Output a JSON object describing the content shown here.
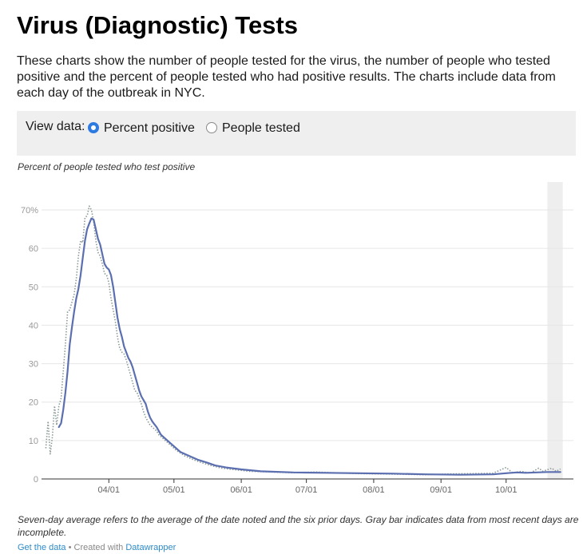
{
  "header": {
    "title": "Virus (Diagnostic) Tests",
    "intro": "These charts show the number of people tested for the virus, the number of people who tested positive and the percent of people tested who had positive results. The charts include data from each day of the outbreak in NYC."
  },
  "controls": {
    "label": "View data:",
    "options": [
      {
        "label": "Percent positive",
        "selected": true
      },
      {
        "label": "People tested",
        "selected": false
      }
    ]
  },
  "chart_subtitle": "Percent of people tested who test positive",
  "note": "Seven-day average refers to the average of the date noted and the six prior days. Gray bar indicates data from most recent days are incomplete.",
  "footer": {
    "get_data": "Get the data",
    "created_with": " • Created with ",
    "tool": "Datawrapper"
  },
  "colors": {
    "average_line": "#5b6fb0",
    "daily_line": "#8a9a96",
    "incomplete_bar": "#eeeeee",
    "accent": "#2d7ae0"
  },
  "chart_data": {
    "type": "line",
    "title": "Percent of people tested who test positive",
    "xlabel": "",
    "ylabel": "",
    "x_ticks": [
      "04/01",
      "05/01",
      "06/01",
      "07/01",
      "08/01",
      "09/01",
      "10/01"
    ],
    "y_ticks": [
      "0",
      "10",
      "20",
      "30",
      "40",
      "50",
      "60",
      "70%"
    ],
    "ylim": [
      0,
      70
    ],
    "grid": true,
    "incomplete_range": [
      "2020-10-20",
      "2020-10-26"
    ],
    "series": [
      {
        "style": "solid",
        "points": [
          [
            "2020-03-09",
            13.5
          ],
          [
            "2020-03-10",
            14.5
          ],
          [
            "2020-03-11",
            18
          ],
          [
            "2020-03-12",
            22.5
          ],
          [
            "2020-03-13",
            28
          ],
          [
            "2020-03-14",
            35
          ],
          [
            "2020-03-15",
            39.5
          ],
          [
            "2020-03-16",
            43.5
          ],
          [
            "2020-03-17",
            47
          ],
          [
            "2020-03-18",
            49.5
          ],
          [
            "2020-03-19",
            53
          ],
          [
            "2020-03-20",
            57.5
          ],
          [
            "2020-03-21",
            62
          ],
          [
            "2020-03-22",
            65
          ],
          [
            "2020-03-23",
            66.5
          ],
          [
            "2020-03-24",
            67.8
          ],
          [
            "2020-03-25",
            67.5
          ],
          [
            "2020-03-26",
            65
          ],
          [
            "2020-03-27",
            62.5
          ],
          [
            "2020-03-28",
            61
          ],
          [
            "2020-03-29",
            58.5
          ],
          [
            "2020-03-30",
            56
          ],
          [
            "2020-03-31",
            55
          ],
          [
            "2020-04-01",
            54.5
          ],
          [
            "2020-04-02",
            53
          ],
          [
            "2020-04-03",
            50
          ],
          [
            "2020-04-04",
            46
          ],
          [
            "2020-04-05",
            42
          ],
          [
            "2020-04-06",
            39
          ],
          [
            "2020-04-07",
            37
          ],
          [
            "2020-04-08",
            34.5
          ],
          [
            "2020-04-09",
            33
          ],
          [
            "2020-04-10",
            31.5
          ],
          [
            "2020-04-11",
            30.5
          ],
          [
            "2020-04-12",
            29
          ],
          [
            "2020-04-13",
            27
          ],
          [
            "2020-04-14",
            25
          ],
          [
            "2020-04-15",
            23
          ],
          [
            "2020-04-16",
            21.5
          ],
          [
            "2020-04-17",
            20.5
          ],
          [
            "2020-04-18",
            19.5
          ],
          [
            "2020-04-19",
            17.5
          ],
          [
            "2020-04-20",
            16
          ],
          [
            "2020-04-21",
            15
          ],
          [
            "2020-04-22",
            14.2
          ],
          [
            "2020-04-23",
            13.5
          ],
          [
            "2020-04-24",
            12.5
          ],
          [
            "2020-04-25",
            11.5
          ],
          [
            "2020-04-28",
            10
          ],
          [
            "2020-05-01",
            8.5
          ],
          [
            "2020-05-04",
            7
          ],
          [
            "2020-05-08",
            6
          ],
          [
            "2020-05-12",
            5
          ],
          [
            "2020-05-16",
            4.3
          ],
          [
            "2020-05-20",
            3.5
          ],
          [
            "2020-05-25",
            3
          ],
          [
            "2020-06-01",
            2.5
          ],
          [
            "2020-06-10",
            2
          ],
          [
            "2020-06-25",
            1.7
          ],
          [
            "2020-07-10",
            1.6
          ],
          [
            "2020-07-25",
            1.5
          ],
          [
            "2020-08-10",
            1.4
          ],
          [
            "2020-08-25",
            1.2
          ],
          [
            "2020-09-10",
            1.1
          ],
          [
            "2020-09-25",
            1.2
          ],
          [
            "2020-10-01",
            1.5
          ],
          [
            "2020-10-06",
            1.7
          ],
          [
            "2020-10-10",
            1.6
          ],
          [
            "2020-10-15",
            1.7
          ],
          [
            "2020-10-20",
            1.8
          ],
          [
            "2020-10-26",
            1.8
          ]
        ]
      },
      {
        "style": "dotted",
        "points": [
          [
            "2020-03-03",
            8
          ],
          [
            "2020-03-04",
            15
          ],
          [
            "2020-03-05",
            6.5
          ],
          [
            "2020-03-06",
            11
          ],
          [
            "2020-03-07",
            19
          ],
          [
            "2020-03-08",
            14
          ],
          [
            "2020-03-09",
            19
          ],
          [
            "2020-03-10",
            21
          ],
          [
            "2020-03-11",
            28
          ],
          [
            "2020-03-12",
            35
          ],
          [
            "2020-03-13",
            43.5
          ],
          [
            "2020-03-14",
            44
          ],
          [
            "2020-03-15",
            46
          ],
          [
            "2020-03-16",
            48
          ],
          [
            "2020-03-17",
            52
          ],
          [
            "2020-03-18",
            58
          ],
          [
            "2020-03-19",
            62
          ],
          [
            "2020-03-20",
            61.5
          ],
          [
            "2020-03-21",
            68
          ],
          [
            "2020-03-22",
            68.5
          ],
          [
            "2020-03-23",
            71
          ],
          [
            "2020-03-24",
            70
          ],
          [
            "2020-03-25",
            67
          ],
          [
            "2020-03-26",
            62
          ],
          [
            "2020-03-27",
            59
          ],
          [
            "2020-03-28",
            58
          ],
          [
            "2020-03-29",
            56
          ],
          [
            "2020-03-30",
            53.5
          ],
          [
            "2020-03-31",
            53
          ],
          [
            "2020-04-01",
            51
          ],
          [
            "2020-04-02",
            47
          ],
          [
            "2020-04-03",
            44
          ],
          [
            "2020-04-04",
            41
          ],
          [
            "2020-04-05",
            37
          ],
          [
            "2020-04-06",
            34
          ],
          [
            "2020-04-07",
            33
          ],
          [
            "2020-04-08",
            32.5
          ],
          [
            "2020-04-09",
            31
          ],
          [
            "2020-04-10",
            29
          ],
          [
            "2020-04-11",
            27
          ],
          [
            "2020-04-12",
            25
          ],
          [
            "2020-04-13",
            23
          ],
          [
            "2020-04-14",
            22.5
          ],
          [
            "2020-04-15",
            21
          ],
          [
            "2020-04-16",
            19.5
          ],
          [
            "2020-04-17",
            17.5
          ],
          [
            "2020-04-18",
            16
          ],
          [
            "2020-04-19",
            15
          ],
          [
            "2020-04-20",
            14
          ],
          [
            "2020-04-21",
            13.5
          ],
          [
            "2020-04-22",
            13
          ],
          [
            "2020-04-23",
            12.5
          ],
          [
            "2020-04-24",
            11.5
          ],
          [
            "2020-04-26",
            10.5
          ],
          [
            "2020-04-29",
            9
          ],
          [
            "2020-05-02",
            7.5
          ],
          [
            "2020-05-06",
            6
          ],
          [
            "2020-05-10",
            5
          ],
          [
            "2020-05-14",
            4.2
          ],
          [
            "2020-05-18",
            3.5
          ],
          [
            "2020-05-23",
            2.8
          ],
          [
            "2020-05-29",
            2.4
          ],
          [
            "2020-06-05",
            2
          ],
          [
            "2020-06-15",
            1.8
          ],
          [
            "2020-06-25",
            1.6
          ],
          [
            "2020-07-05",
            1.8
          ],
          [
            "2020-07-15",
            1.6
          ],
          [
            "2020-07-25",
            1.4
          ],
          [
            "2020-08-05",
            1.3
          ],
          [
            "2020-08-15",
            1.2
          ],
          [
            "2020-08-25",
            1.1
          ],
          [
            "2020-09-05",
            1.3
          ],
          [
            "2020-09-15",
            1.4
          ],
          [
            "2020-09-25",
            1.5
          ],
          [
            "2020-10-01",
            3
          ],
          [
            "2020-10-04",
            1.6
          ],
          [
            "2020-10-08",
            2
          ],
          [
            "2020-10-12",
            1.5
          ],
          [
            "2020-10-16",
            2.8
          ],
          [
            "2020-10-18",
            2
          ],
          [
            "2020-10-22",
            2.8
          ],
          [
            "2020-10-24",
            2
          ],
          [
            "2020-10-26",
            2.6
          ]
        ]
      }
    ]
  }
}
